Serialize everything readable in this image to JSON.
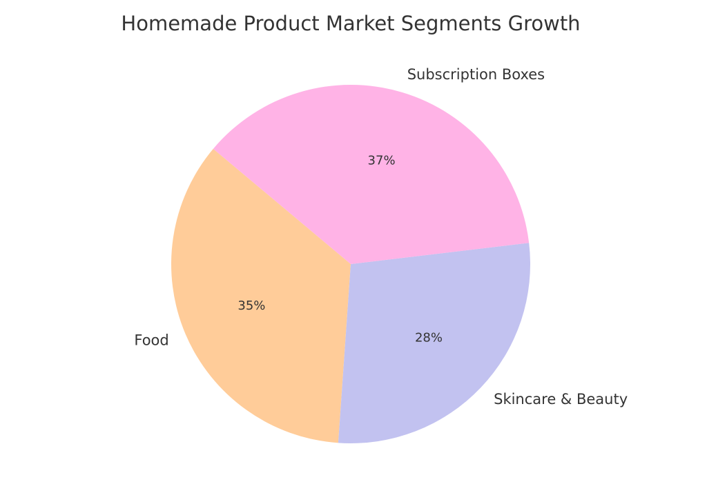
{
  "chart_data": {
    "type": "pie",
    "title": "Homemade Product Market Segments Growth",
    "categories": [
      "Food",
      "Skincare & Beauty",
      "Subscription Boxes"
    ],
    "values": [
      35,
      28,
      37
    ],
    "value_labels": [
      "35%",
      "28%",
      "37%"
    ],
    "colors": [
      "#ffcc99",
      "#c2c2f0",
      "#ffb3e6"
    ]
  }
}
